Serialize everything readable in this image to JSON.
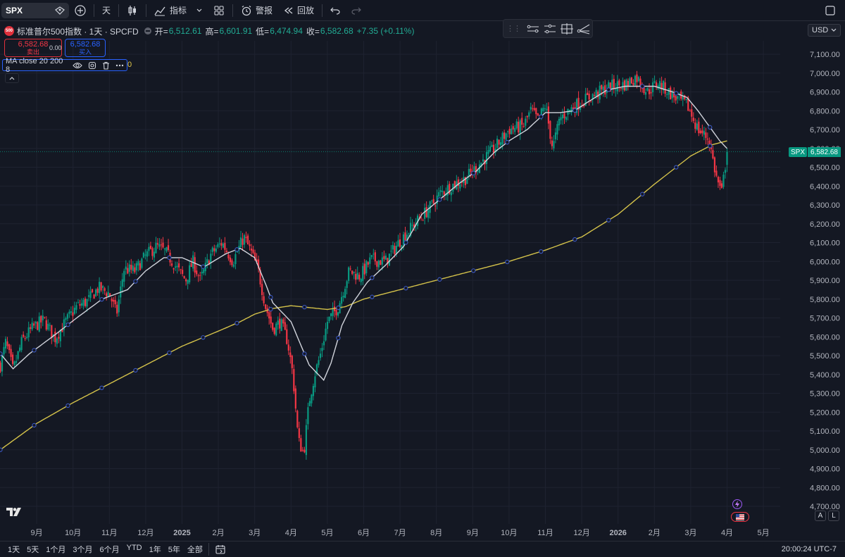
{
  "toolbar": {
    "symbol": "SPX",
    "interval": "天",
    "indicators_label": "指标",
    "alert_label": "警报",
    "replay_label": "回放"
  },
  "header": {
    "title": "标准普尔500指数 · 1天 · SPCFD",
    "badge": "500",
    "open_label": "开=",
    "open": "6,512.61",
    "high_label": "高=",
    "high": "6,601.91",
    "low_label": "低=",
    "low": "6,474.94",
    "close_label": "收=",
    "close": "6,582.68",
    "change": "+7.35 (+0.11%)",
    "currency": "USD"
  },
  "trade": {
    "sell_price": "6,582.68",
    "sell_label": "卖出",
    "spread": "0.00",
    "buy_price": "6,582.68",
    "buy_label": "买入"
  },
  "ma_legend": {
    "label": "MA close 20 200 8",
    "trailing": "0"
  },
  "price_tag": {
    "symbol": "SPX",
    "value": "6,582.68"
  },
  "colors": {
    "up": "#089981",
    "down": "#f23645",
    "ma_fast": "#d1d4dc",
    "ma_slow": "#d4c24a",
    "background": "#141823",
    "grid": "#1e2230",
    "accent": "#2962ff"
  },
  "bottom": {
    "ranges": [
      "1天",
      "5天",
      "1个月",
      "3个月",
      "6个月",
      "YTD",
      "1年",
      "5年",
      "全部"
    ],
    "clock": "20:00:24 UTC-7"
  },
  "chart_data": {
    "type": "candlestick",
    "y_ticks": [
      "7,100.00",
      "7,000.00",
      "6,900.00",
      "6,800.00",
      "6,700.00",
      "6,600.00",
      "6,500.00",
      "6,400.00",
      "6,300.00",
      "6,200.00",
      "6,100.00",
      "6,000.00",
      "5,900.00",
      "5,800.00",
      "5,700.00",
      "5,600.00",
      "5,500.00",
      "5,400.00",
      "5,300.00",
      "5,200.00",
      "5,100.00",
      "5,000.00",
      "4,900.00",
      "4,800.00",
      "4,700.00"
    ],
    "ylim": [
      4700,
      7100
    ],
    "x_ticks": [
      {
        "label": "9月",
        "month": 1,
        "bold": false
      },
      {
        "label": "10月",
        "month": 2,
        "bold": false
      },
      {
        "label": "11月",
        "month": 3,
        "bold": false
      },
      {
        "label": "12月",
        "month": 4,
        "bold": false
      },
      {
        "label": "2025",
        "month": 5,
        "bold": true
      },
      {
        "label": "2月",
        "month": 6,
        "bold": false
      },
      {
        "label": "3月",
        "month": 7,
        "bold": false
      },
      {
        "label": "4月",
        "month": 8,
        "bold": false
      },
      {
        "label": "5月",
        "month": 9,
        "bold": false
      },
      {
        "label": "6月",
        "month": 10,
        "bold": false
      },
      {
        "label": "7月",
        "month": 11,
        "bold": false
      },
      {
        "label": "8月",
        "month": 12,
        "bold": false
      },
      {
        "label": "9月",
        "month": 13,
        "bold": false
      },
      {
        "label": "10月",
        "month": 14,
        "bold": false
      },
      {
        "label": "11月",
        "month": 15,
        "bold": false
      },
      {
        "label": "12月",
        "month": 16,
        "bold": false
      },
      {
        "label": "2026",
        "month": 17,
        "bold": true
      },
      {
        "label": "2月",
        "month": 18,
        "bold": false
      },
      {
        "label": "3月",
        "month": 19,
        "bold": false
      },
      {
        "label": "4月",
        "month": 20,
        "bold": false
      },
      {
        "label": "5月",
        "month": 21,
        "bold": false
      }
    ],
    "close_path": [
      [
        0.0,
        5450
      ],
      [
        0.15,
        5570
      ],
      [
        0.35,
        5420
      ],
      [
        0.6,
        5580
      ],
      [
        0.9,
        5650
      ],
      [
        1.2,
        5690
      ],
      [
        1.5,
        5590
      ],
      [
        1.8,
        5680
      ],
      [
        2.1,
        5760
      ],
      [
        2.4,
        5790
      ],
      [
        2.7,
        5860
      ],
      [
        3.0,
        5830
      ],
      [
        3.2,
        5720
      ],
      [
        3.4,
        5960
      ],
      [
        3.7,
        5950
      ],
      [
        4.0,
        6030
      ],
      [
        4.3,
        6080
      ],
      [
        4.55,
        6050
      ],
      [
        4.8,
        5980
      ],
      [
        5.1,
        5900
      ],
      [
        5.3,
        6000
      ],
      [
        5.5,
        5900
      ],
      [
        5.8,
        6040
      ],
      [
        6.1,
        6100
      ],
      [
        6.4,
        6000
      ],
      [
        6.7,
        6130
      ],
      [
        6.9,
        6050
      ],
      [
        7.1,
        5950
      ],
      [
        7.3,
        5760
      ],
      [
        7.5,
        5640
      ],
      [
        7.7,
        5680
      ],
      [
        7.9,
        5580
      ],
      [
        8.05,
        5400
      ],
      [
        8.2,
        5050
      ],
      [
        8.35,
        4980
      ],
      [
        8.5,
        5260
      ],
      [
        8.65,
        5400
      ],
      [
        8.8,
        5500
      ],
      [
        9.0,
        5680
      ],
      [
        9.3,
        5760
      ],
      [
        9.6,
        5950
      ],
      [
        9.9,
        5920
      ],
      [
        10.2,
        6010
      ],
      [
        10.6,
        6000
      ],
      [
        11.0,
        6110
      ],
      [
        11.4,
        6200
      ],
      [
        11.8,
        6280
      ],
      [
        12.1,
        6360
      ],
      [
        12.4,
        6400
      ],
      [
        12.8,
        6440
      ],
      [
        13.2,
        6520
      ],
      [
        13.6,
        6600
      ],
      [
        14.0,
        6700
      ],
      [
        14.4,
        6720
      ],
      [
        14.6,
        6800
      ],
      [
        14.8,
        6750
      ],
      [
        15.0,
        6830
      ],
      [
        15.2,
        6600
      ],
      [
        15.4,
        6760
      ],
      [
        15.7,
        6810
      ],
      [
        16.0,
        6850
      ],
      [
        16.4,
        6890
      ],
      [
        16.8,
        6930
      ],
      [
        17.2,
        6940
      ],
      [
        17.5,
        6980
      ],
      [
        17.8,
        6900
      ],
      [
        18.1,
        6950
      ],
      [
        18.5,
        6880
      ],
      [
        18.9,
        6830
      ],
      [
        19.2,
        6700
      ],
      [
        19.5,
        6650
      ],
      [
        19.7,
        6450
      ],
      [
        19.85,
        6360
      ],
      [
        20.0,
        6582.68
      ]
    ],
    "ma_fast_path": [
      [
        0.0,
        5510
      ],
      [
        0.35,
        5430
      ],
      [
        0.8,
        5510
      ],
      [
        1.5,
        5610
      ],
      [
        2.1,
        5700
      ],
      [
        2.8,
        5800
      ],
      [
        3.5,
        5850
      ],
      [
        4.0,
        5950
      ],
      [
        4.5,
        6020
      ],
      [
        5.0,
        6020
      ],
      [
        5.6,
        5970
      ],
      [
        6.2,
        6040
      ],
      [
        6.6,
        6070
      ],
      [
        7.0,
        6020
      ],
      [
        7.3,
        5880
      ],
      [
        7.5,
        5780
      ],
      [
        8.0,
        5680
      ],
      [
        8.5,
        5450
      ],
      [
        8.9,
        5370
      ],
      [
        9.1,
        5460
      ],
      [
        9.4,
        5660
      ],
      [
        9.7,
        5780
      ],
      [
        10.1,
        5890
      ],
      [
        10.6,
        5980
      ],
      [
        11.1,
        6080
      ],
      [
        11.6,
        6250
      ],
      [
        12.1,
        6330
      ],
      [
        12.6,
        6410
      ],
      [
        13.1,
        6480
      ],
      [
        13.6,
        6580
      ],
      [
        14.0,
        6640
      ],
      [
        14.5,
        6700
      ],
      [
        15.0,
        6790
      ],
      [
        15.4,
        6790
      ],
      [
        15.8,
        6800
      ],
      [
        16.2,
        6850
      ],
      [
        16.7,
        6910
      ],
      [
        17.2,
        6930
      ],
      [
        17.6,
        6930
      ],
      [
        18.0,
        6930
      ],
      [
        18.5,
        6900
      ],
      [
        18.9,
        6870
      ],
      [
        19.2,
        6800
      ],
      [
        19.5,
        6720
      ],
      [
        19.8,
        6640
      ],
      [
        20.0,
        6600
      ]
    ],
    "ma_slow_path": [
      [
        0.0,
        5000
      ],
      [
        1.0,
        5140
      ],
      [
        2.0,
        5250
      ],
      [
        3.0,
        5350
      ],
      [
        4.0,
        5450
      ],
      [
        5.0,
        5550
      ],
      [
        6.0,
        5630
      ],
      [
        6.6,
        5680
      ],
      [
        7.0,
        5720
      ],
      [
        7.5,
        5750
      ],
      [
        8.0,
        5765
      ],
      [
        8.5,
        5755
      ],
      [
        9.0,
        5745
      ],
      [
        9.5,
        5760
      ],
      [
        10.0,
        5800
      ],
      [
        11.0,
        5850
      ],
      [
        12.0,
        5900
      ],
      [
        13.0,
        5950
      ],
      [
        14.0,
        6000
      ],
      [
        15.0,
        6060
      ],
      [
        16.0,
        6130
      ],
      [
        17.0,
        6250
      ],
      [
        18.0,
        6410
      ],
      [
        19.0,
        6560
      ],
      [
        19.6,
        6620
      ],
      [
        20.0,
        6640
      ]
    ]
  }
}
